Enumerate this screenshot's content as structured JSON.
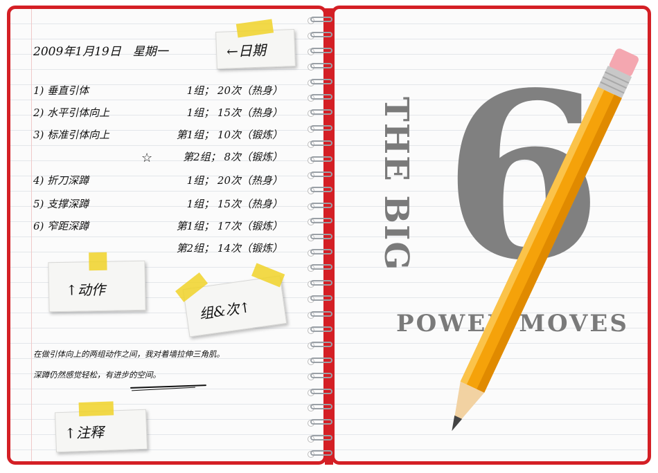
{
  "journal": {
    "date": "2009年1月19日　星期一",
    "date_note": "←日期",
    "exercises": [
      {
        "name": "1) 垂直引体",
        "sets": "1组； 20次（热身）"
      },
      {
        "name": "2) 水平引体向上",
        "sets": "1组； 15次（热身）"
      },
      {
        "name": "3) 标准引体向上",
        "sets": "第1组； 10次（锻炼）"
      },
      {
        "name": "",
        "sets": "第2组； 8次（锻炼）"
      },
      {
        "name": "4) 折刀深蹲",
        "sets": "1组； 20次（热身）"
      },
      {
        "name": "5) 支撑深蹲",
        "sets": "1组； 15次（热身）"
      },
      {
        "name": "6) 窄距深蹲",
        "sets": "第1组； 17次（锻炼）"
      },
      {
        "name": "",
        "sets": "第2组； 14次（锻炼）"
      }
    ],
    "star": "☆",
    "action_note": "↑动作",
    "sets_note": "组&次↑",
    "paragraph_line1": "在做引体向上的两组动作之间，我对着墙拉伸三角肌。",
    "paragraph_line2": "深蹲仍然感觉轻松，有进步的空间。",
    "annotation_note": "↑注释"
  },
  "cover": {
    "title_vertical": "THE BIG",
    "number": "6",
    "subtitle": "POWER MOVES"
  },
  "colors": {
    "binding": "#d41f25",
    "tape": "#f0d228",
    "stamp": "#7a7a7a",
    "pencil": "#f5a20a"
  }
}
